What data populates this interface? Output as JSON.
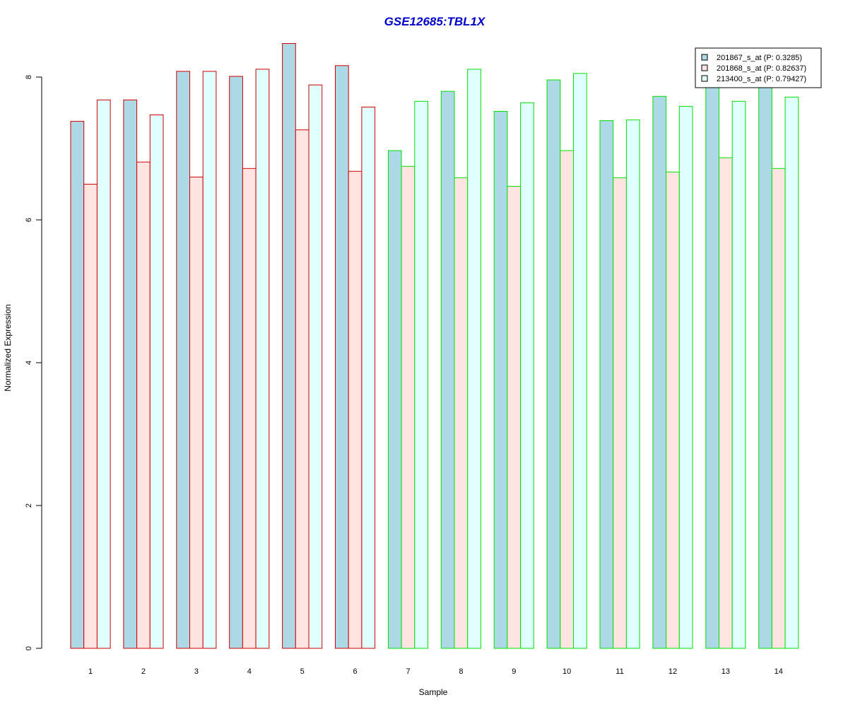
{
  "chart_data": {
    "type": "bar",
    "title": "GSE12685:TBL1X",
    "xlabel": "Sample",
    "ylabel": "Normalized Expression",
    "ylim": [
      0,
      8.5
    ],
    "yticks": [
      0,
      2,
      4,
      6,
      8
    ],
    "grid": false,
    "legend_position": "top-right",
    "categories": [
      "1",
      "2",
      "3",
      "4",
      "5",
      "6",
      "7",
      "8",
      "9",
      "10",
      "11",
      "12",
      "13",
      "14"
    ],
    "group_border_colors": [
      "#d00000",
      "#d00000",
      "#d00000",
      "#d00000",
      "#d00000",
      "#d00000",
      "#00e000",
      "#00e000",
      "#00e000",
      "#00e000",
      "#00e000",
      "#00e000",
      "#00e000",
      "#00e000"
    ],
    "series": [
      {
        "name": "201867_s_at (P: 0.3285)",
        "fill": "#add8e6",
        "values": [
          7.38,
          7.68,
          8.08,
          8.01,
          8.47,
          8.16,
          6.97,
          7.8,
          7.52,
          7.96,
          7.39,
          7.73,
          7.98,
          7.96
        ]
      },
      {
        "name": "201868_s_at (P: 0.82637)",
        "fill": "#ffe4e1",
        "values": [
          6.5,
          6.81,
          6.6,
          6.72,
          7.26,
          6.68,
          6.75,
          6.59,
          6.47,
          6.97,
          6.59,
          6.67,
          6.87,
          6.72
        ]
      },
      {
        "name": "213400_s_at (P: 0.79427)",
        "fill": "#e0ffff",
        "values": [
          7.68,
          7.47,
          8.08,
          8.11,
          7.89,
          7.58,
          7.66,
          8.11,
          7.64,
          8.05,
          7.4,
          7.59,
          7.66,
          7.72
        ]
      }
    ],
    "title_color": "#0000cc"
  }
}
